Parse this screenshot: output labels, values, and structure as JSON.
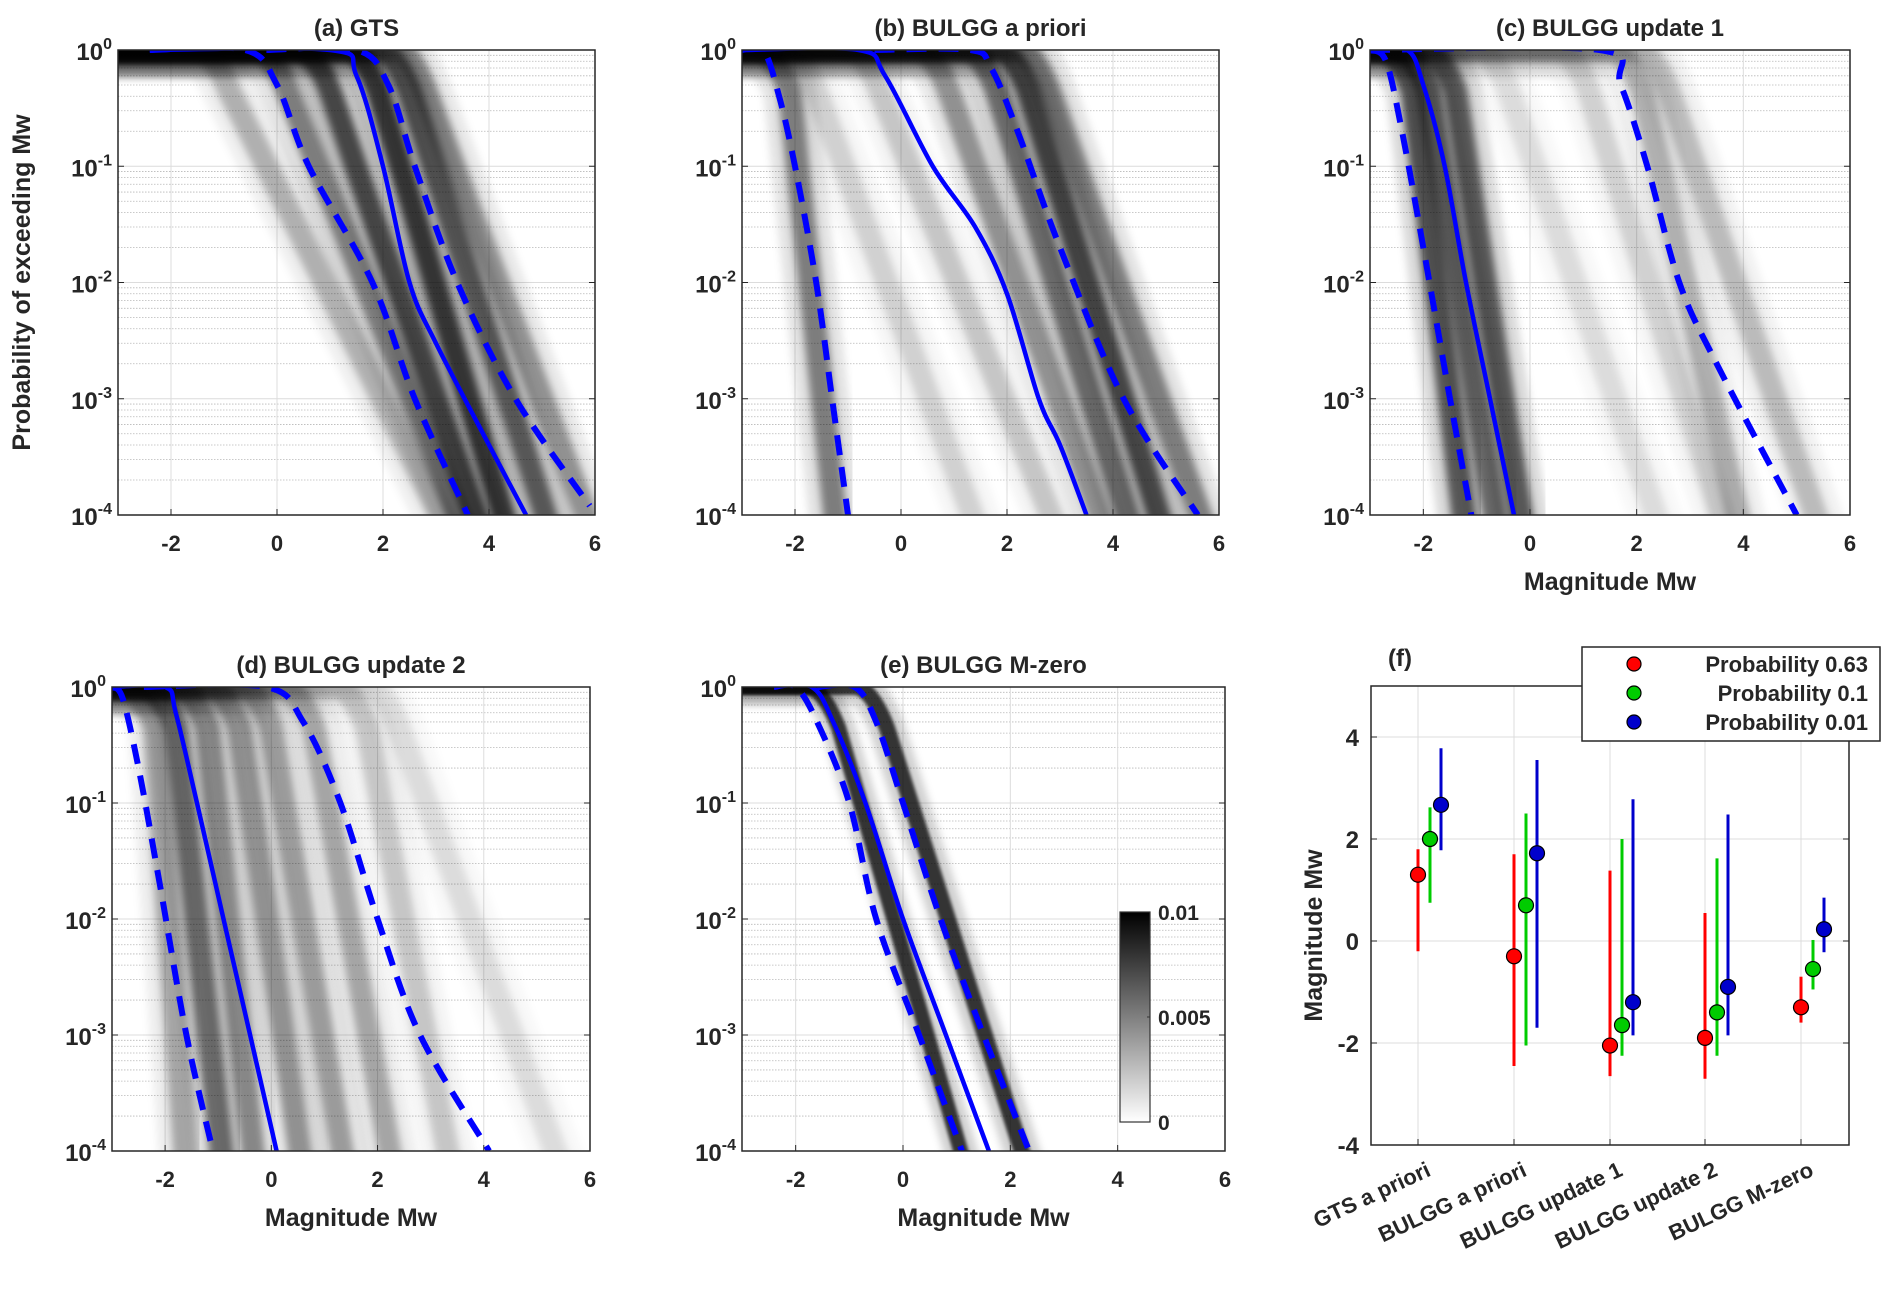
{
  "figure": {
    "description": "Magnitude exceedance probability distributions for seismic hazard models"
  },
  "chart_data": [
    {
      "id": "a",
      "type": "heatmap",
      "title": "(a) GTS",
      "xlabel": "",
      "ylabel": "Probability of exceeding Mw",
      "xlim": [
        -3,
        6
      ],
      "ylim": [
        0.0001,
        1
      ],
      "yscale": "log",
      "xticks": [
        "-2",
        "0",
        "2",
        "4",
        "6"
      ],
      "xtick_values": [
        -2,
        0,
        2,
        4,
        6
      ],
      "yticks": [
        {
          "base": "10",
          "exp": "0"
        },
        {
          "base": "10",
          "exp": "-1"
        },
        {
          "base": "10",
          "exp": "-2"
        },
        {
          "base": "10",
          "exp": "-3"
        },
        {
          "base": "10",
          "exp": "-4"
        }
      ],
      "grid": true,
      "density_bands": [
        {
          "x_at_1": -1.5,
          "x_at_1e-4": 3.3,
          "weight": 0.35
        },
        {
          "x_at_1": -0.4,
          "x_at_1e-4": 3.6,
          "weight": 0.6
        },
        {
          "x_at_1": 0.4,
          "x_at_1e-4": 3.9,
          "weight": 0.9
        },
        {
          "x_at_1": 1.3,
          "x_at_1e-4": 4.4,
          "weight": 1.0
        },
        {
          "x_at_1": 1.9,
          "x_at_1e-4": 5.2,
          "weight": 0.8
        },
        {
          "x_at_1": 2.2,
          "x_at_1e-4": 6.0,
          "weight": 0.5
        }
      ],
      "series": [
        {
          "name": "median",
          "style": "solid",
          "color": "#0000ff",
          "points": [
            [
              -2.4,
              1
            ],
            [
              1.0,
              1
            ],
            [
              1.5,
              0.6
            ],
            [
              2.0,
              0.1
            ],
            [
              2.5,
              0.01
            ],
            [
              3.0,
              0.003
            ],
            [
              4.0,
              0.0004
            ],
            [
              4.7,
              0.0001
            ]
          ]
        },
        {
          "name": "lower bound",
          "style": "dashed",
          "color": "#0000ff",
          "points": [
            [
              -2.4,
              1
            ],
            [
              -0.6,
              1
            ],
            [
              0.0,
              0.5
            ],
            [
              0.6,
              0.1
            ],
            [
              1.8,
              0.01
            ],
            [
              2.6,
              0.001
            ],
            [
              3.6,
              0.0001
            ]
          ]
        },
        {
          "name": "upper bound",
          "style": "dashed",
          "color": "#0000ff",
          "points": [
            [
              -0.2,
              1
            ],
            [
              1.5,
              1
            ],
            [
              2.1,
              0.5
            ],
            [
              2.6,
              0.1
            ],
            [
              3.4,
              0.01
            ],
            [
              4.5,
              0.001
            ],
            [
              5.9,
              0.00012
            ]
          ]
        }
      ]
    },
    {
      "id": "b",
      "type": "heatmap",
      "title": "(b) BULGG a priori",
      "xlabel": "",
      "ylabel": "",
      "xlim": [
        -3,
        6
      ],
      "ylim": [
        0.0001,
        1
      ],
      "yscale": "log",
      "xticks": [
        "-2",
        "0",
        "2",
        "4",
        "6"
      ],
      "xtick_values": [
        -2,
        0,
        2,
        4,
        6
      ],
      "yticks": [
        {
          "base": "10",
          "exp": "0"
        },
        {
          "base": "10",
          "exp": "-1"
        },
        {
          "base": "10",
          "exp": "-2"
        },
        {
          "base": "10",
          "exp": "-3"
        },
        {
          "base": "10",
          "exp": "-4"
        }
      ],
      "grid": true,
      "density_bands": [
        {
          "x_at_1": -2.7,
          "x_at_1e-4": -1.2,
          "weight": 0.6
        },
        {
          "x_at_1": -2.2,
          "x_at_1e-4": 1.5,
          "weight": 0.2
        },
        {
          "x_at_1": -1.0,
          "x_at_1e-4": 3.0,
          "weight": 0.25
        },
        {
          "x_at_1": 0.3,
          "x_at_1e-4": 3.9,
          "weight": 0.5
        },
        {
          "x_at_1": 1.2,
          "x_at_1e-4": 4.4,
          "weight": 0.7
        },
        {
          "x_at_1": 1.8,
          "x_at_1e-4": 5.0,
          "weight": 0.9
        },
        {
          "x_at_1": 2.2,
          "x_at_1e-4": 5.8,
          "weight": 0.6
        }
      ],
      "series": [
        {
          "name": "median",
          "style": "solid",
          "color": "#0000ff",
          "points": [
            [
              -3.0,
              1
            ],
            [
              -0.8,
              1
            ],
            [
              -0.3,
              0.6
            ],
            [
              0.6,
              0.1
            ],
            [
              1.4,
              0.03
            ],
            [
              2.0,
              0.008
            ],
            [
              2.6,
              0.001
            ],
            [
              3.0,
              0.0004
            ],
            [
              3.5,
              0.0001
            ]
          ]
        },
        {
          "name": "lower bound",
          "style": "dashed",
          "color": "#0000ff",
          "points": [
            [
              -3.0,
              1
            ],
            [
              -2.6,
              1
            ],
            [
              -2.3,
              0.4
            ],
            [
              -2.0,
              0.1
            ],
            [
              -1.6,
              0.01
            ],
            [
              -1.3,
              0.001
            ],
            [
              -1.0,
              0.0001
            ]
          ]
        },
        {
          "name": "upper bound",
          "style": "dashed",
          "color": "#0000ff",
          "points": [
            [
              -0.5,
              1
            ],
            [
              1.3,
              1
            ],
            [
              1.7,
              0.7
            ],
            [
              2.2,
              0.2
            ],
            [
              3.0,
              0.02
            ],
            [
              4.2,
              0.001
            ],
            [
              5.6,
              0.0001
            ]
          ]
        }
      ]
    },
    {
      "id": "c",
      "type": "heatmap",
      "title": "(c) BULGG update 1",
      "xlabel": "Magnitude Mw",
      "ylabel": "",
      "xlim": [
        -3,
        6
      ],
      "ylim": [
        0.0001,
        1
      ],
      "yscale": "log",
      "xticks": [
        "-2",
        "0",
        "2",
        "4",
        "6"
      ],
      "xtick_values": [
        -2,
        0,
        2,
        4,
        6
      ],
      "yticks": [
        {
          "base": "10",
          "exp": "0"
        },
        {
          "base": "10",
          "exp": "-1"
        },
        {
          "base": "10",
          "exp": "-2"
        },
        {
          "base": "10",
          "exp": "-3"
        },
        {
          "base": "10",
          "exp": "-4"
        }
      ],
      "grid": true,
      "density_bands": [
        {
          "x_at_1": -2.8,
          "x_at_1e-4": -1.2,
          "weight": 0.8
        },
        {
          "x_at_1": -2.5,
          "x_at_1e-4": -0.6,
          "weight": 0.7
        },
        {
          "x_at_1": -2.0,
          "x_at_1e-4": -0.1,
          "weight": 0.8
        },
        {
          "x_at_1": -1.0,
          "x_at_1e-4": 2.5,
          "weight": 0.15
        },
        {
          "x_at_1": 0.5,
          "x_at_1e-4": 3.7,
          "weight": 0.2
        },
        {
          "x_at_1": 1.5,
          "x_at_1e-4": 4.0,
          "weight": 0.35
        },
        {
          "x_at_1": 2.0,
          "x_at_1e-4": 5.5,
          "weight": 0.3
        }
      ],
      "series": [
        {
          "name": "median",
          "style": "solid",
          "color": "#0000ff",
          "points": [
            [
              -3.0,
              1
            ],
            [
              -2.3,
              1
            ],
            [
              -2.0,
              0.5
            ],
            [
              -1.6,
              0.1
            ],
            [
              -1.2,
              0.01
            ],
            [
              -0.75,
              0.001
            ],
            [
              -0.3,
              0.0001
            ]
          ]
        },
        {
          "name": "lower bound",
          "style": "dashed",
          "color": "#0000ff",
          "points": [
            [
              -3.0,
              1
            ],
            [
              -2.7,
              0.8
            ],
            [
              -2.4,
              0.2
            ],
            [
              -2.0,
              0.02
            ],
            [
              -1.5,
              0.001
            ],
            [
              -1.1,
              0.0001
            ]
          ]
        },
        {
          "name": "upper bound",
          "style": "dashed",
          "color": "#0000ff",
          "points": [
            [
              -3.0,
              1
            ],
            [
              1.3,
              1
            ],
            [
              1.7,
              0.5
            ],
            [
              2.2,
              0.1
            ],
            [
              2.8,
              0.01
            ],
            [
              3.5,
              0.002
            ],
            [
              5.0,
              0.0001
            ]
          ]
        }
      ]
    },
    {
      "id": "d",
      "type": "heatmap",
      "title": "(d) BULGG update 2",
      "xlabel": "Magnitude Mw",
      "ylabel": "",
      "xlim": [
        -3,
        6
      ],
      "ylim": [
        0.0001,
        1
      ],
      "yscale": "log",
      "xticks": [
        "-2",
        "0",
        "2",
        "4",
        "6"
      ],
      "xtick_values": [
        -2,
        0,
        2,
        4,
        6
      ],
      "yticks": [
        {
          "base": "10",
          "exp": "0"
        },
        {
          "base": "10",
          "exp": "-1"
        },
        {
          "base": "10",
          "exp": "-2"
        },
        {
          "base": "10",
          "exp": "-3"
        },
        {
          "base": "10",
          "exp": "-4"
        }
      ],
      "grid": true,
      "density_bands": [
        {
          "x_at_1": -2.8,
          "x_at_1e-4": -1.6,
          "weight": 0.4
        },
        {
          "x_at_1": -2.4,
          "x_at_1e-4": -0.9,
          "weight": 0.7
        },
        {
          "x_at_1": -1.8,
          "x_at_1e-4": -0.3,
          "weight": 0.55
        },
        {
          "x_at_1": -1.2,
          "x_at_1e-4": 0.6,
          "weight": 0.5
        },
        {
          "x_at_1": -0.6,
          "x_at_1e-4": 1.4,
          "weight": 0.45
        },
        {
          "x_at_1": 0.2,
          "x_at_1e-4": 2.3,
          "weight": 0.4
        },
        {
          "x_at_1": 1.2,
          "x_at_1e-4": 3.4,
          "weight": 0.25
        },
        {
          "x_at_1": 1.8,
          "x_at_1e-4": 5.5,
          "weight": 0.15
        }
      ],
      "series": [
        {
          "name": "median",
          "style": "solid",
          "color": "#0000ff",
          "points": [
            [
              -3.0,
              1
            ],
            [
              -2.0,
              1
            ],
            [
              -1.8,
              0.6
            ],
            [
              -1.4,
              0.1
            ],
            [
              -0.9,
              0.01
            ],
            [
              -0.4,
              0.001
            ],
            [
              0.1,
              0.0001
            ]
          ]
        },
        {
          "name": "lower bound",
          "style": "dashed",
          "color": "#0000ff",
          "points": [
            [
              -3.0,
              1
            ],
            [
              -2.8,
              0.8
            ],
            [
              -2.5,
              0.2
            ],
            [
              -2.1,
              0.02
            ],
            [
              -1.6,
              0.001
            ],
            [
              -1.1,
              0.0001
            ]
          ]
        },
        {
          "name": "upper bound",
          "style": "dashed",
          "color": "#0000ff",
          "points": [
            [
              -2.4,
              1
            ],
            [
              -0.1,
              1
            ],
            [
              0.6,
              0.5
            ],
            [
              1.3,
              0.1
            ],
            [
              2.0,
              0.01
            ],
            [
              2.8,
              0.001
            ],
            [
              4.1,
              0.0001
            ]
          ]
        }
      ]
    },
    {
      "id": "e",
      "type": "heatmap",
      "title": "(e) BULGG M-zero",
      "xlabel": "Magnitude Mw",
      "ylabel": "",
      "xlim": [
        -3,
        6
      ],
      "ylim": [
        0.0001,
        1
      ],
      "yscale": "log",
      "xticks": [
        "-2",
        "0",
        "2",
        "4",
        "6"
      ],
      "xtick_values": [
        -2,
        0,
        2,
        4,
        6
      ],
      "yticks": [
        {
          "base": "10",
          "exp": "0"
        },
        {
          "base": "10",
          "exp": "-1"
        },
        {
          "base": "10",
          "exp": "-2"
        },
        {
          "base": "10",
          "exp": "-3"
        },
        {
          "base": "10",
          "exp": "-4"
        }
      ],
      "grid": true,
      "colorbar": {
        "min": 0,
        "max": 0.01,
        "ticks": [
          "0.01",
          "0.005",
          "0"
        ],
        "tick_values": [
          0.01,
          0.005,
          0
        ],
        "colormap": "gray-reversed"
      },
      "density_bands": [
        {
          "x_at_1": -1.8,
          "x_at_1e-4": 1.2,
          "weight": 1.0,
          "width": 0.28
        },
        {
          "x_at_1": -0.9,
          "x_at_1e-4": 2.35,
          "weight": 1.0,
          "width": 0.3
        }
      ],
      "series": [
        {
          "name": "median",
          "style": "solid",
          "color": "#0000ff",
          "points": [
            [
              -2.4,
              1
            ],
            [
              -1.7,
              1
            ],
            [
              -1.3,
              0.5
            ],
            [
              -0.7,
              0.1
            ],
            [
              0.0,
              0.01
            ],
            [
              0.8,
              0.001
            ],
            [
              1.6,
              0.0001
            ]
          ]
        },
        {
          "name": "lower bound",
          "style": "dashed",
          "color": "#0000ff",
          "points": [
            [
              -2.4,
              1
            ],
            [
              -2.0,
              1
            ],
            [
              -1.6,
              0.5
            ],
            [
              -1.0,
              0.1
            ],
            [
              -0.5,
              0.01
            ],
            [
              0.3,
              0.001
            ],
            [
              1.1,
              0.0001
            ]
          ]
        },
        {
          "name": "upper bound",
          "style": "dashed",
          "color": "#0000ff",
          "points": [
            [
              -1.6,
              1
            ],
            [
              -0.9,
              1
            ],
            [
              -0.5,
              0.5
            ],
            [
              0.0,
              0.1
            ],
            [
              0.7,
              0.01
            ],
            [
              1.5,
              0.001
            ],
            [
              2.35,
              0.0001
            ]
          ]
        }
      ]
    },
    {
      "id": "f",
      "type": "scatter",
      "title": "(f)",
      "xlabel": "",
      "ylabel": "Magnitude Mw",
      "ylim": [
        -4,
        5
      ],
      "yticks": [
        "4",
        "2",
        "0",
        "-2",
        "-4"
      ],
      "ytick_values": [
        4,
        2,
        0,
        -2,
        -4
      ],
      "categories": [
        "GTS a priori",
        "BULGG a priori",
        "BULGG update 1",
        "BULGG update 2",
        "BULGG M-zero"
      ],
      "grid": true,
      "legend": {
        "position": "top-right"
      },
      "series": [
        {
          "name": "Probability 0.63",
          "color": "#ff0000",
          "values": [
            1.3,
            -0.3,
            -2.05,
            -1.9,
            -1.3
          ],
          "lower": [
            -0.2,
            -2.45,
            -2.65,
            -2.7,
            -1.6
          ],
          "upper": [
            1.8,
            1.7,
            1.38,
            0.55,
            -0.7
          ]
        },
        {
          "name": "Probability 0.1",
          "color": "#00cc00",
          "values": [
            2.0,
            0.7,
            -1.65,
            -1.4,
            -0.55
          ],
          "lower": [
            0.75,
            -2.05,
            -2.25,
            -2.25,
            -0.95
          ],
          "upper": [
            2.62,
            2.5,
            2.0,
            1.62,
            0.02
          ]
        },
        {
          "name": "Probability 0.01",
          "color": "#0000cc",
          "values": [
            2.67,
            1.72,
            -1.2,
            -0.9,
            0.23
          ],
          "lower": [
            1.78,
            -1.7,
            -1.85,
            -1.85,
            -0.22
          ],
          "upper": [
            3.78,
            3.55,
            2.78,
            2.48,
            0.85
          ]
        }
      ]
    }
  ]
}
